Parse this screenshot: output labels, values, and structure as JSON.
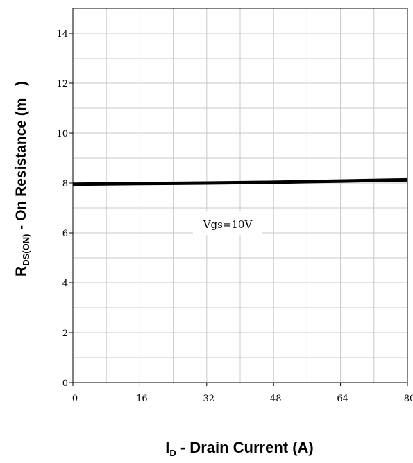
{
  "chart_data": {
    "type": "line",
    "xlabel": {
      "main": "I",
      "sub": "D",
      "rest": " - Drain Current (A)"
    },
    "ylabel": {
      "main": "R",
      "sub": "DS(ON)",
      "rest": " - On Resistance (m   )"
    },
    "xlim": [
      0,
      80
    ],
    "ylim": [
      0,
      15
    ],
    "x_ticks": [
      "0",
      "16",
      "32",
      "48",
      "64",
      "80"
    ],
    "y_ticks": [
      "0",
      "2",
      "4",
      "6",
      "8",
      "10",
      "12",
      "14"
    ],
    "grid": true,
    "annotation": {
      "text": "Vgs=10V",
      "x": 40,
      "y": 6.3
    },
    "series": [
      {
        "x": [
          0,
          16,
          32,
          48,
          64,
          80
        ],
        "y": [
          7.95,
          7.98,
          8.0,
          8.03,
          8.08,
          8.13
        ]
      }
    ],
    "colors": {
      "line": "#000000",
      "grid": "#c8c8c8",
      "axis": "#000000"
    }
  }
}
